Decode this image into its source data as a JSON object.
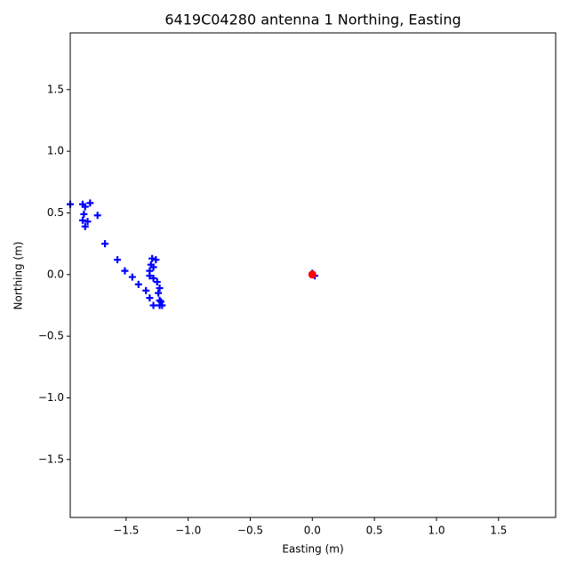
{
  "chart_data": {
    "type": "scatter",
    "title": "6419C04280 antenna 1 Northing, Easting",
    "x_label": "Easting (m)",
    "y_label": "Northing (m)",
    "xlim": [
      -1.95,
      1.96
    ],
    "ylim": [
      -1.97,
      1.96
    ],
    "xticks": [
      {
        "value": -1.5,
        "label": "−1.5"
      },
      {
        "value": -1.0,
        "label": "−1.0"
      },
      {
        "value": -0.5,
        "label": "−0.5"
      },
      {
        "value": 0,
        "label": "0.0"
      },
      0.5,
      {
        "value": 1.0,
        "label": "1.0"
      },
      1.5
    ],
    "yticks": [
      {
        "value": -1.5,
        "label": "−1.5"
      },
      {
        "value": -1.0,
        "label": "−1.0"
      },
      {
        "value": -0.5,
        "label": "−0.5"
      },
      {
        "value": 0,
        "label": "0.0"
      },
      0.5,
      {
        "value": 1.0,
        "label": "1.0"
      },
      1.5
    ],
    "series": [
      {
        "color": "#0000ff",
        "marker": "plus",
        "x": [
          -1.95,
          -1.85,
          -1.83,
          -1.79,
          -1.84,
          -1.73,
          -1.85,
          -1.81,
          -1.83,
          -1.67,
          -1.57,
          -1.51,
          -1.45,
          -1.4,
          -1.34,
          -1.31,
          -1.28,
          -1.23,
          -1.21,
          -1.24,
          -1.23,
          -1.25,
          -1.28,
          -1.31,
          -1.3,
          -1.29,
          -1.26,
          -1.28,
          -1.31,
          -1.23,
          -1.22,
          0.0,
          0.02
        ],
        "values": [
          0.57,
          0.57,
          0.55,
          0.58,
          0.49,
          0.48,
          0.44,
          0.43,
          0.39,
          0.25,
          0.12,
          0.03,
          -0.02,
          -0.08,
          -0.13,
          -0.19,
          -0.25,
          -0.21,
          -0.25,
          -0.15,
          -0.11,
          -0.06,
          -0.03,
          0.03,
          0.08,
          0.13,
          0.12,
          0.06,
          -0.01,
          -0.25,
          -0.22,
          0.01,
          -0.01
        ]
      },
      {
        "color": "#ff0000",
        "marker": "circle",
        "x": [
          0.0
        ],
        "values": [
          0.0
        ]
      }
    ]
  }
}
